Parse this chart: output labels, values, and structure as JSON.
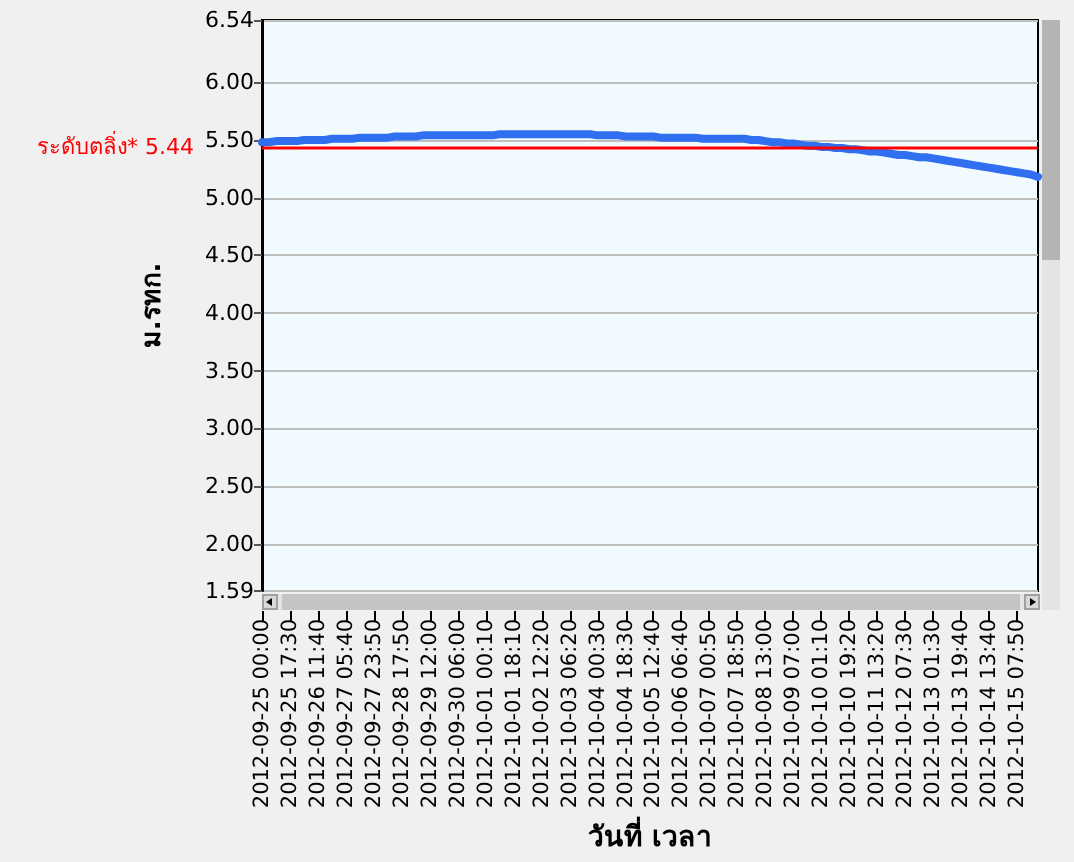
{
  "chart_data": {
    "type": "line",
    "xlabel": "วันที่ เวลา",
    "ylabel": "ม.รทก.",
    "categories": [
      "2012-09-25 00:00",
      null,
      null,
      null,
      "2012-09-25 17:30",
      null,
      null,
      null,
      "2012-09-26 11:40",
      null,
      null,
      null,
      "2012-09-27 05:40",
      null,
      null,
      null,
      "2012-09-27 23:50",
      null,
      null,
      null,
      "2012-09-28 17:50",
      null,
      null,
      null,
      "2012-09-29 12:00",
      null,
      null,
      null,
      "2012-09-30 06:00",
      null,
      null,
      null,
      "2012-10-01 00:10",
      null,
      null,
      null,
      "2012-10-01 18:10",
      null,
      null,
      null,
      "2012-10-02 12:20",
      null,
      null,
      null,
      "2012-10-03 06:20",
      null,
      null,
      null,
      "2012-10-04 00:30",
      null,
      null,
      null,
      "2012-10-04 18:30",
      null,
      null,
      null,
      "2012-10-05 12:40",
      null,
      null,
      null,
      "2012-10-06 06:40",
      null,
      null,
      null,
      "2012-10-07 00:50",
      null,
      null,
      null,
      "2012-10-07 18:50",
      null,
      null,
      null,
      "2012-10-08 13:00",
      null,
      null,
      null,
      "2012-10-09 07:00",
      null,
      null,
      null,
      "2012-10-10 01:10",
      null,
      null,
      null,
      "2012-10-10 19:20",
      null,
      null,
      null,
      "2012-10-11 13:20",
      null,
      null,
      null,
      "2012-10-12 07:30",
      null,
      null,
      null,
      "2012-10-13 01:30",
      null,
      null,
      null,
      "2012-10-13 19:40",
      null,
      null,
      null,
      "2012-10-14 13:40",
      null,
      null,
      null,
      "2012-10-15 07:50",
      null,
      null,
      null
    ],
    "series": [
      {
        "color": "#2f6ff0",
        "values": [
          5.48,
          5.48,
          5.49,
          5.49,
          5.49,
          5.49,
          5.5,
          5.5,
          5.5,
          5.5,
          5.51,
          5.51,
          5.51,
          5.51,
          5.52,
          5.52,
          5.52,
          5.52,
          5.52,
          5.53,
          5.53,
          5.53,
          5.53,
          5.54,
          5.54,
          5.54,
          5.54,
          5.54,
          5.54,
          5.54,
          5.54,
          5.54,
          5.54,
          5.54,
          5.55,
          5.55,
          5.55,
          5.55,
          5.55,
          5.55,
          5.55,
          5.55,
          5.55,
          5.55,
          5.55,
          5.55,
          5.55,
          5.55,
          5.54,
          5.54,
          5.54,
          5.54,
          5.53,
          5.53,
          5.53,
          5.53,
          5.53,
          5.52,
          5.52,
          5.52,
          5.52,
          5.52,
          5.52,
          5.51,
          5.51,
          5.51,
          5.51,
          5.51,
          5.51,
          5.51,
          5.5,
          5.5,
          5.49,
          5.48,
          5.48,
          5.47,
          5.47,
          5.46,
          5.45,
          5.45,
          5.44,
          5.44,
          5.43,
          5.43,
          5.42,
          5.42,
          5.41,
          5.4,
          5.4,
          5.39,
          5.38,
          5.37,
          5.37,
          5.36,
          5.35,
          5.35,
          5.34,
          5.33,
          5.32,
          5.31,
          5.3,
          5.29,
          5.28,
          5.27,
          5.26,
          5.25,
          5.24,
          5.23,
          5.22,
          5.21,
          5.2,
          5.18
        ]
      }
    ],
    "ylim": [
      1.59,
      6.54
    ],
    "yticks": [
      1.59,
      {
        "value": 2,
        "label": "2.00"
      },
      {
        "value": 2.5,
        "label": "2.50"
      },
      {
        "value": 3,
        "label": "3.00"
      },
      {
        "value": 3.5,
        "label": "3.50"
      },
      {
        "value": 4,
        "label": "4.00"
      },
      {
        "value": 4.5,
        "label": "4.50"
      },
      {
        "value": 5,
        "label": "5.00"
      },
      {
        "value": 5.5,
        "label": "5.50"
      },
      {
        "value": 6,
        "label": "6.00"
      },
      6.54
    ],
    "grid": "y",
    "ref_lines": [
      {
        "axis": "y",
        "value": 5.44,
        "label": "ระดับตลิ่ง* 5.44",
        "color": "#ff0000"
      }
    ]
  }
}
